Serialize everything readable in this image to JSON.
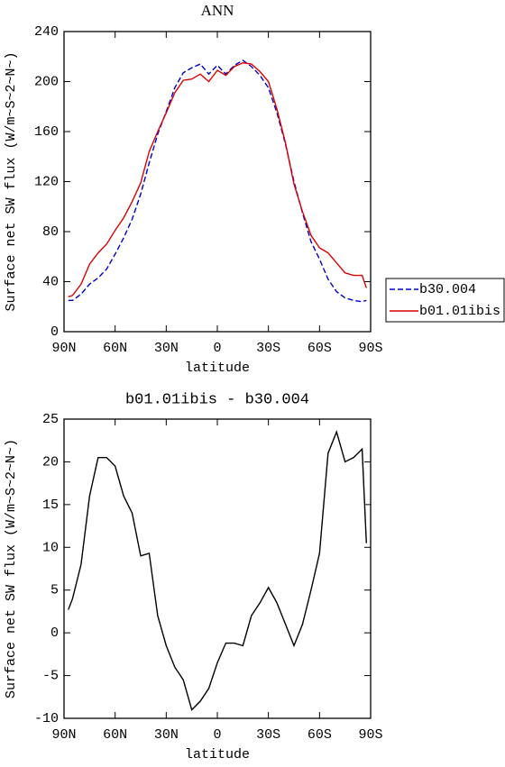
{
  "chart_data": [
    {
      "type": "line",
      "title": "ANN",
      "xlabel": "latitude",
      "ylabel": "Surface net SW flux (W/m~S~2~N~)",
      "x": [
        87.5,
        85,
        80,
        75,
        70,
        65,
        60,
        55,
        50,
        45,
        40,
        35,
        30,
        25,
        20,
        15,
        10,
        5,
        0,
        -5,
        -10,
        -15,
        -20,
        -25,
        -30,
        -35,
        -40,
        -45,
        -50,
        -55,
        -60,
        -65,
        -70,
        -75,
        -80,
        -85,
        -87.5
      ],
      "series": [
        {
          "name": "b30.004",
          "color": "#0000cc",
          "dash": true,
          "values": [
            25,
            25,
            30,
            38,
            43,
            50,
            62,
            75,
            90,
            110,
            135,
            158,
            176,
            195,
            207,
            211,
            214,
            206,
            213,
            206,
            213,
            217,
            212,
            205,
            195,
            175,
            150,
            120,
            95,
            72,
            58,
            42,
            32,
            27,
            25,
            24,
            25
          ]
        },
        {
          "name": "b01.01ibis",
          "color": "#dd0000",
          "dash": false,
          "values": [
            28,
            29,
            38,
            54,
            63,
            70,
            81,
            91,
            104,
            119,
            144,
            160,
            175,
            191,
            201,
            202,
            206,
            200,
            209,
            205,
            212,
            215,
            214,
            208,
            200,
            178,
            151,
            118,
            96,
            77,
            67,
            63,
            55,
            47,
            45,
            45,
            35
          ]
        }
      ],
      "xlim": [
        90,
        -90
      ],
      "xticks": [
        {
          "value": 90,
          "label": "90N"
        },
        {
          "value": 60,
          "label": "60N"
        },
        {
          "value": 30,
          "label": "30N"
        },
        0,
        {
          "value": -30,
          "label": "30S"
        },
        {
          "value": -60,
          "label": "60S"
        },
        {
          "value": -90,
          "label": "90S"
        }
      ],
      "ylim": [
        0,
        240
      ],
      "yticks": [
        0,
        40,
        80,
        120,
        160,
        200,
        240
      ],
      "legend": "right"
    },
    {
      "type": "line",
      "title": "b01.01ibis - b30.004",
      "xlabel": "latitude",
      "ylabel": "Surface net SW flux (W/m~S~2~N~)",
      "x": [
        87.5,
        85,
        80,
        75,
        70,
        65,
        60,
        55,
        50,
        45,
        40,
        35,
        30,
        25,
        20,
        15,
        10,
        5,
        0,
        -5,
        -10,
        -15,
        -20,
        -25,
        -30,
        -35,
        -40,
        -45,
        -50,
        -55,
        -60,
        -65,
        -70,
        -75,
        -80,
        -85,
        -87.5
      ],
      "series": [
        {
          "color": "#000000",
          "dash": false,
          "values": [
            2.7,
            4,
            8,
            16,
            20.5,
            20.5,
            19.5,
            16,
            14,
            9,
            9.3,
            2,
            -1.5,
            -4,
            -5.5,
            -9,
            -8,
            -6.5,
            -3.5,
            -1.2,
            -1.2,
            -1.5,
            2,
            3.5,
            5.3,
            3.5,
            1,
            -1.5,
            1,
            5,
            9.3,
            21,
            23.5,
            20,
            20.5,
            21.5,
            10.5
          ]
        }
      ],
      "xlim": [
        90,
        -90
      ],
      "xticks": [
        {
          "value": 90,
          "label": "90N"
        },
        {
          "value": 60,
          "label": "60N"
        },
        {
          "value": 30,
          "label": "30N"
        },
        0,
        {
          "value": -30,
          "label": "30S"
        },
        {
          "value": -60,
          "label": "60S"
        },
        {
          "value": -90,
          "label": "90S"
        }
      ],
      "ylim": [
        -10,
        25
      ],
      "yticks": [
        -10,
        -5,
        0,
        5,
        10,
        15,
        20,
        25
      ]
    }
  ]
}
